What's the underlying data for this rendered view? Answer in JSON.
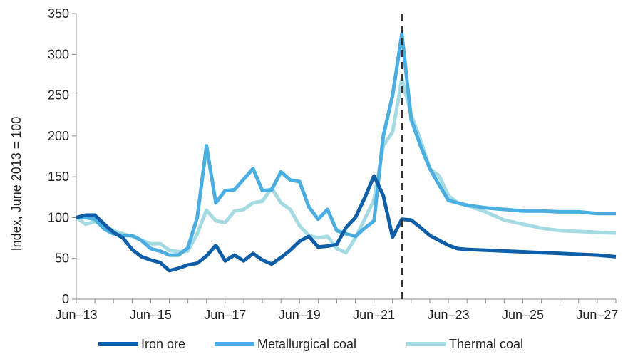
{
  "chart_data": {
    "type": "line",
    "title": "",
    "xlabel": "",
    "ylabel": "Index, June 2013 = 100",
    "ylim": [
      0,
      350
    ],
    "yticks": [
      0,
      50,
      100,
      150,
      200,
      250,
      300,
      350
    ],
    "xlim": [
      2013.0,
      2027.5
    ],
    "xticks": [
      {
        "value": 2013.0,
        "label": "Jun–13"
      },
      {
        "value": 2015.0,
        "label": "Jun–15"
      },
      {
        "value": 2017.0,
        "label": "Jun–17"
      },
      {
        "value": 2019.0,
        "label": "Jun–19"
      },
      {
        "value": 2021.0,
        "label": "Jun–21"
      },
      {
        "value": 2023.0,
        "label": "Jun–23"
      },
      {
        "value": 2025.0,
        "label": "Jun–25"
      },
      {
        "value": 2027.0,
        "label": "Jun–27"
      }
    ],
    "reference_line_x": 2021.75,
    "legend_position": "bottom",
    "series": [
      {
        "name": "Iron ore",
        "color": "#0f5ea8",
        "x": [
          2013.0,
          2013.25,
          2013.5,
          2013.75,
          2014.0,
          2014.25,
          2014.5,
          2014.75,
          2015.0,
          2015.25,
          2015.5,
          2015.75,
          2016.0,
          2016.25,
          2016.5,
          2016.75,
          2017.0,
          2017.25,
          2017.5,
          2017.75,
          2018.0,
          2018.25,
          2018.5,
          2018.75,
          2019.0,
          2019.25,
          2019.5,
          2019.75,
          2020.0,
          2020.25,
          2020.5,
          2020.75,
          2021.0,
          2021.25,
          2021.5,
          2021.75,
          2022.0,
          2022.25,
          2022.5,
          2022.75,
          2023.0,
          2023.25,
          2023.5,
          2024.0,
          2024.5,
          2025.0,
          2025.5,
          2026.0,
          2026.5,
          2027.0,
          2027.5
        ],
        "values": [
          100,
          103,
          103,
          92,
          82,
          75,
          61,
          52,
          48,
          45,
          35,
          38,
          42,
          44,
          53,
          66,
          47,
          54,
          47,
          56,
          48,
          43,
          51,
          60,
          71,
          77,
          64,
          65,
          67,
          88,
          100,
          124,
          151,
          127,
          76,
          98,
          97,
          88,
          78,
          72,
          66,
          62,
          61,
          60,
          59,
          58,
          57,
          56,
          55,
          54,
          52
        ]
      },
      {
        "name": "Metallurgical coal",
        "color": "#4aaee0",
        "x": [
          2013.0,
          2013.25,
          2013.5,
          2013.75,
          2014.0,
          2014.25,
          2014.5,
          2014.75,
          2015.0,
          2015.25,
          2015.5,
          2015.75,
          2016.0,
          2016.25,
          2016.5,
          2016.75,
          2017.0,
          2017.25,
          2017.5,
          2017.75,
          2018.0,
          2018.25,
          2018.5,
          2018.75,
          2019.0,
          2019.25,
          2019.5,
          2019.75,
          2020.0,
          2020.25,
          2020.5,
          2020.75,
          2021.0,
          2021.25,
          2021.5,
          2021.75,
          2022.0,
          2022.25,
          2022.5,
          2022.75,
          2023.0,
          2023.25,
          2023.5,
          2024.0,
          2024.5,
          2025.0,
          2025.5,
          2026.0,
          2026.5,
          2027.0,
          2027.5
        ],
        "values": [
          100,
          100,
          98,
          86,
          80,
          78,
          78,
          72,
          62,
          59,
          54,
          54,
          63,
          100,
          188,
          118,
          133,
          134,
          147,
          160,
          133,
          134,
          156,
          146,
          144,
          113,
          98,
          110,
          84,
          80,
          77,
          87,
          96,
          200,
          250,
          325,
          220,
          188,
          160,
          140,
          121,
          118,
          115,
          112,
          110,
          108,
          108,
          107,
          107,
          105,
          105
        ]
      },
      {
        "name": "Thermal coal",
        "color": "#a4dbe3",
        "x": [
          2013.0,
          2013.25,
          2013.5,
          2013.75,
          2014.0,
          2014.25,
          2014.5,
          2014.75,
          2015.0,
          2015.25,
          2015.5,
          2015.75,
          2016.0,
          2016.25,
          2016.5,
          2016.75,
          2017.0,
          2017.25,
          2017.5,
          2017.75,
          2018.0,
          2018.25,
          2018.5,
          2018.75,
          2019.0,
          2019.25,
          2019.5,
          2019.75,
          2020.0,
          2020.25,
          2020.5,
          2020.75,
          2021.0,
          2021.25,
          2021.5,
          2021.75,
          2022.0,
          2022.25,
          2022.5,
          2022.75,
          2023.0,
          2023.25,
          2023.5,
          2024.0,
          2024.5,
          2025.0,
          2025.5,
          2026.0,
          2026.5,
          2027.0,
          2027.5
        ],
        "values": [
          100,
          92,
          95,
          90,
          84,
          80,
          77,
          72,
          68,
          68,
          60,
          58,
          59,
          80,
          109,
          96,
          94,
          108,
          110,
          118,
          120,
          136,
          118,
          110,
          90,
          78,
          75,
          77,
          62,
          57,
          75,
          98,
          122,
          188,
          205,
          270,
          226,
          195,
          160,
          151,
          127,
          118,
          115,
          107,
          97,
          92,
          87,
          84,
          83,
          82,
          81
        ]
      }
    ]
  }
}
